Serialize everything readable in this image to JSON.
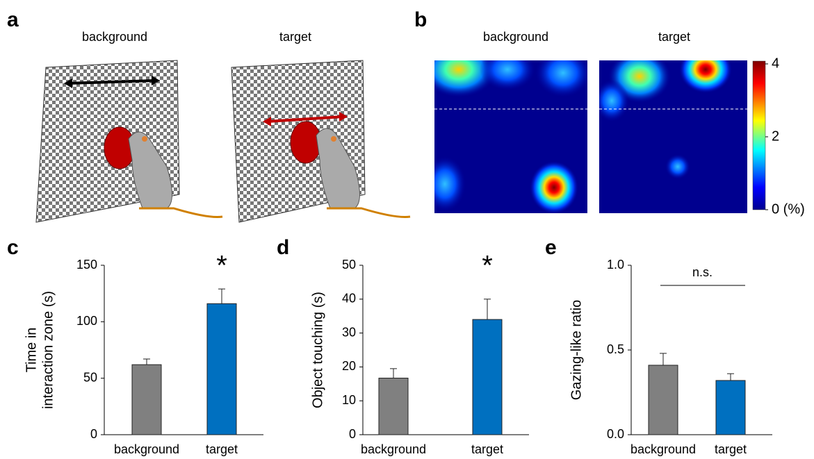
{
  "panel_labels": [
    "a",
    "b",
    "c",
    "d",
    "e"
  ],
  "panel_a": {
    "titles": [
      "background",
      "target"
    ]
  },
  "panel_b": {
    "titles": [
      "background",
      "target"
    ],
    "colorbar": {
      "lim": [
        0,
        4
      ],
      "ticks": [
        4,
        2,
        {
          "value": 0,
          "label": "0 (%)"
        }
      ]
    }
  },
  "chart_data": [
    {
      "type": "bar",
      "ylabel": [
        "Time in",
        "interaction zone (s)"
      ],
      "categories": [
        "background",
        "target"
      ],
      "values": [
        62,
        116
      ],
      "errors": [
        5,
        13
      ],
      "colors": [
        "#808080",
        "#0070c0"
      ],
      "ylim": [
        0,
        150
      ],
      "yticks": [
        0,
        50,
        100,
        150
      ],
      "annotation": "*"
    },
    {
      "type": "bar",
      "ylabel": [
        "Object touching (s)"
      ],
      "categories": [
        "background",
        "target"
      ],
      "values": [
        16.7,
        34
      ],
      "errors": [
        2.8,
        6
      ],
      "colors": [
        "#808080",
        "#0070c0"
      ],
      "ylim": [
        0,
        50
      ],
      "yticks": [
        0,
        10,
        20,
        30,
        40,
        50
      ],
      "annotation": "*"
    },
    {
      "type": "bar",
      "ylabel": [
        "Gazing-like ratio"
      ],
      "categories": [
        "background",
        "target"
      ],
      "values": [
        0.41,
        0.32
      ],
      "errors": [
        0.07,
        0.04
      ],
      "colors": [
        "#808080",
        "#0070c0"
      ],
      "ylim": [
        0,
        1
      ],
      "yticks": [
        {
          "value": 0,
          "label": "0.0"
        },
        {
          "value": 0.5,
          "label": "0.5"
        },
        {
          "value": 1,
          "label": "1.0"
        }
      ],
      "annotation": "n.s."
    }
  ]
}
